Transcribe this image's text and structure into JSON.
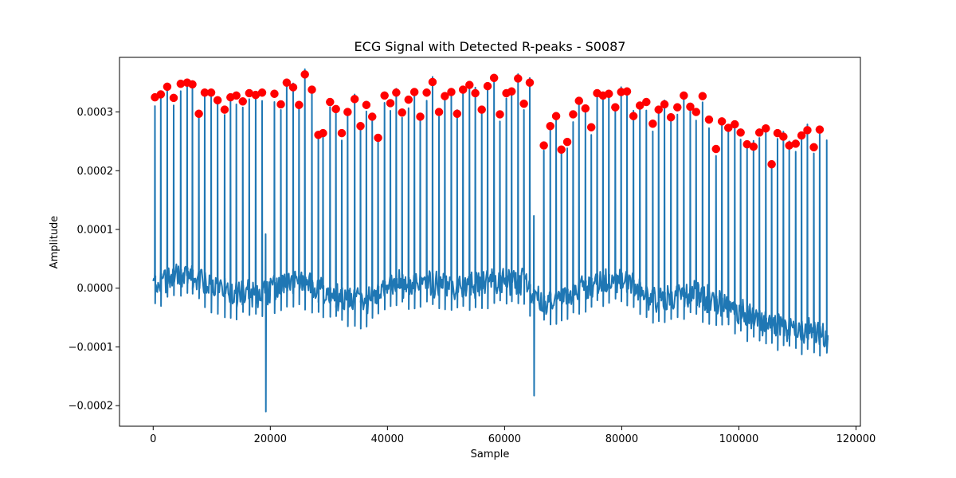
{
  "chart_data": {
    "type": "line",
    "title": "ECG Signal with Detected R-peaks - S0087",
    "xlabel": "Sample",
    "ylabel": "Amplitude",
    "xlim": [
      -5750,
      120750
    ],
    "ylim": [
      -0.000235,
      0.000393
    ],
    "x_ticks": [
      0,
      20000,
      40000,
      60000,
      80000,
      100000,
      120000
    ],
    "x_tick_labels": [
      "0",
      "20000",
      "40000",
      "60000",
      "80000",
      "100000",
      "120000"
    ],
    "y_ticks": [
      -0.0002,
      -0.0001,
      0.0,
      0.0001,
      0.0002,
      0.0003
    ],
    "y_tick_labels": [
      "−0.0002",
      "−0.0001",
      "0.0000",
      "0.0001",
      "0.0002",
      "0.0003"
    ],
    "grid": false,
    "legend": "none",
    "signal": {
      "color": "#1f77b4",
      "sample_count": 115200,
      "baseline": [
        [
          0,
          1e-05
        ],
        [
          6000,
          2.5e-05
        ],
        [
          10000,
          0.0
        ],
        [
          14000,
          -1e-05
        ],
        [
          18000,
          -1.2e-05
        ],
        [
          22000,
          5e-06
        ],
        [
          26000,
          8e-06
        ],
        [
          32000,
          -2e-05
        ],
        [
          36000,
          -2.5e-05
        ],
        [
          40000,
          5e-06
        ],
        [
          46000,
          1e-05
        ],
        [
          52000,
          0.0
        ],
        [
          58000,
          1e-05
        ],
        [
          63000,
          1.2e-05
        ],
        [
          66000,
          -2.5e-05
        ],
        [
          70000,
          -1.5e-05
        ],
        [
          76000,
          1.2e-05
        ],
        [
          80000,
          1.5e-05
        ],
        [
          86000,
          -2e-05
        ],
        [
          92000,
          -1e-05
        ],
        [
          98000,
          -3e-05
        ],
        [
          104000,
          -6e-05
        ],
        [
          110000,
          -7e-05
        ],
        [
          115000,
          -8e-05
        ]
      ],
      "noise_amplitude": 2e-05,
      "extra_spikes": [
        {
          "x": 19200,
          "top": 9.2e-05,
          "bottom": -0.00021
        },
        {
          "x": 65000,
          "top": 0.000123,
          "bottom": -0.000183
        }
      ],
      "end_segment": {
        "x": 115000,
        "top": 0.000252
      }
    },
    "rpeaks": {
      "color": "#ff0000",
      "x": [
        300,
        1300,
        2400,
        3500,
        4700,
        5800,
        6700,
        7800,
        8800,
        9900,
        11000,
        12200,
        13200,
        14200,
        15300,
        16400,
        17500,
        18600,
        20700,
        21800,
        22800,
        23900,
        24900,
        25900,
        27100,
        28200,
        29000,
        30200,
        31200,
        32200,
        33200,
        34400,
        35400,
        36400,
        37400,
        38400,
        39500,
        40500,
        41500,
        42500,
        43600,
        44600,
        45600,
        46700,
        47700,
        48800,
        49800,
        50900,
        51900,
        52900,
        54000,
        55000,
        56100,
        57100,
        58200,
        59200,
        60300,
        61200,
        62300,
        63300,
        64300,
        66700,
        67800,
        68800,
        69700,
        70700,
        71700,
        72700,
        73800,
        74800,
        75800,
        76800,
        77800,
        78900,
        79900,
        80900,
        82000,
        83100,
        84200,
        85300,
        86300,
        87300,
        88400,
        89500,
        90600,
        91700,
        92700,
        93800,
        94900,
        96100,
        97100,
        98200,
        99300,
        100300,
        101400,
        102500,
        103500,
        104600,
        105600,
        106600,
        107600,
        108600,
        109700,
        110700,
        111700,
        112800,
        113800
      ],
      "y": [
        0.000325,
        0.00033,
        0.000343,
        0.000324,
        0.000348,
        0.00035,
        0.000347,
        0.000297,
        0.000333,
        0.000333,
        0.00032,
        0.000304,
        0.000325,
        0.000328,
        0.000318,
        0.000332,
        0.000329,
        0.000333,
        0.000331,
        0.000313,
        0.00035,
        0.000342,
        0.000312,
        0.000364,
        0.000338,
        0.000261,
        0.000264,
        0.000317,
        0.000305,
        0.000264,
        0.0003,
        0.000322,
        0.000276,
        0.000312,
        0.000292,
        0.000256,
        0.000328,
        0.000315,
        0.000333,
        0.000299,
        0.000321,
        0.000334,
        0.000292,
        0.000333,
        0.000351,
        0.0003,
        0.000327,
        0.000334,
        0.000297,
        0.000338,
        0.000346,
        0.000332,
        0.000304,
        0.000344,
        0.000358,
        0.000296,
        0.000332,
        0.000335,
        0.000357,
        0.000314,
        0.00035,
        0.000243,
        0.000276,
        0.000293,
        0.000236,
        0.000249,
        0.000296,
        0.000319,
        0.000306,
        0.000274,
        0.000332,
        0.000328,
        0.000331,
        0.000308,
        0.000334,
        0.000335,
        0.000293,
        0.000311,
        0.000317,
        0.00028,
        0.000304,
        0.000313,
        0.000291,
        0.000308,
        0.000328,
        0.000309,
        0.0003,
        0.000327,
        0.000287,
        0.000237,
        0.000284,
        0.000273,
        0.000279,
        0.000265,
        0.000245,
        0.000241,
        0.000265,
        0.000272,
        0.000211,
        0.000264,
        0.000258,
        0.000243,
        0.000246,
        0.00026,
        0.000269,
        0.00024,
        0.00027
      ]
    }
  }
}
